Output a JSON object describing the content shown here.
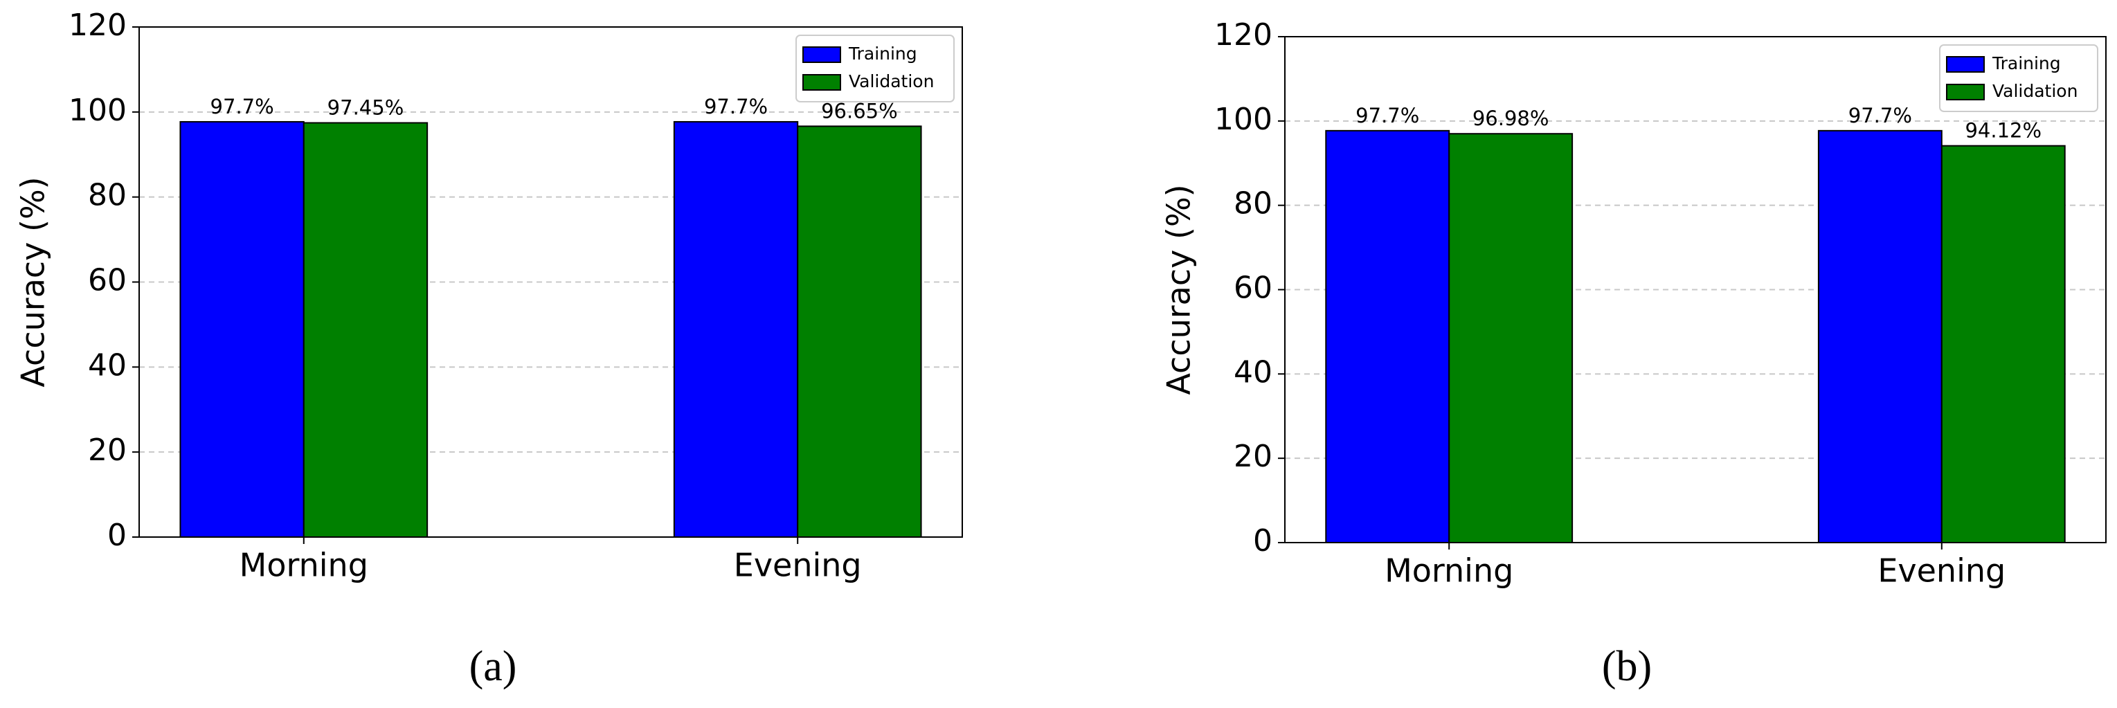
{
  "chart_data": [
    {
      "type": "bar",
      "ylabel": "Accuracy (%)",
      "caption": "(a)",
      "categories": [
        "Morning",
        "Evening"
      ],
      "series": [
        {
          "name": "Training",
          "color": "#0000ff",
          "values": [
            97.7,
            97.7
          ],
          "value_labels": [
            "97.7%",
            "97.7%"
          ]
        },
        {
          "name": "Validation",
          "color": "#008000",
          "values": [
            97.45,
            96.65
          ],
          "value_labels": [
            "97.45%",
            "96.65%"
          ]
        }
      ],
      "ylim": [
        0,
        120
      ],
      "yticks": [
        0,
        20,
        40,
        60,
        80,
        100,
        120
      ],
      "grid": true,
      "legend": "upper right"
    },
    {
      "type": "bar",
      "ylabel": "Accuracy (%)",
      "caption": "(b)",
      "categories": [
        "Morning",
        "Evening"
      ],
      "series": [
        {
          "name": "Training",
          "color": "#0000ff",
          "values": [
            97.7,
            97.7
          ],
          "value_labels": [
            "97.7%",
            "97.7%"
          ]
        },
        {
          "name": "Validation",
          "color": "#008000",
          "values": [
            96.98,
            94.12
          ],
          "value_labels": [
            "96.98%",
            "94.12%"
          ]
        }
      ],
      "ylim": [
        0,
        120
      ],
      "yticks": [
        0,
        20,
        40,
        60,
        80,
        100,
        120
      ],
      "grid": true,
      "legend": "upper right"
    }
  ]
}
